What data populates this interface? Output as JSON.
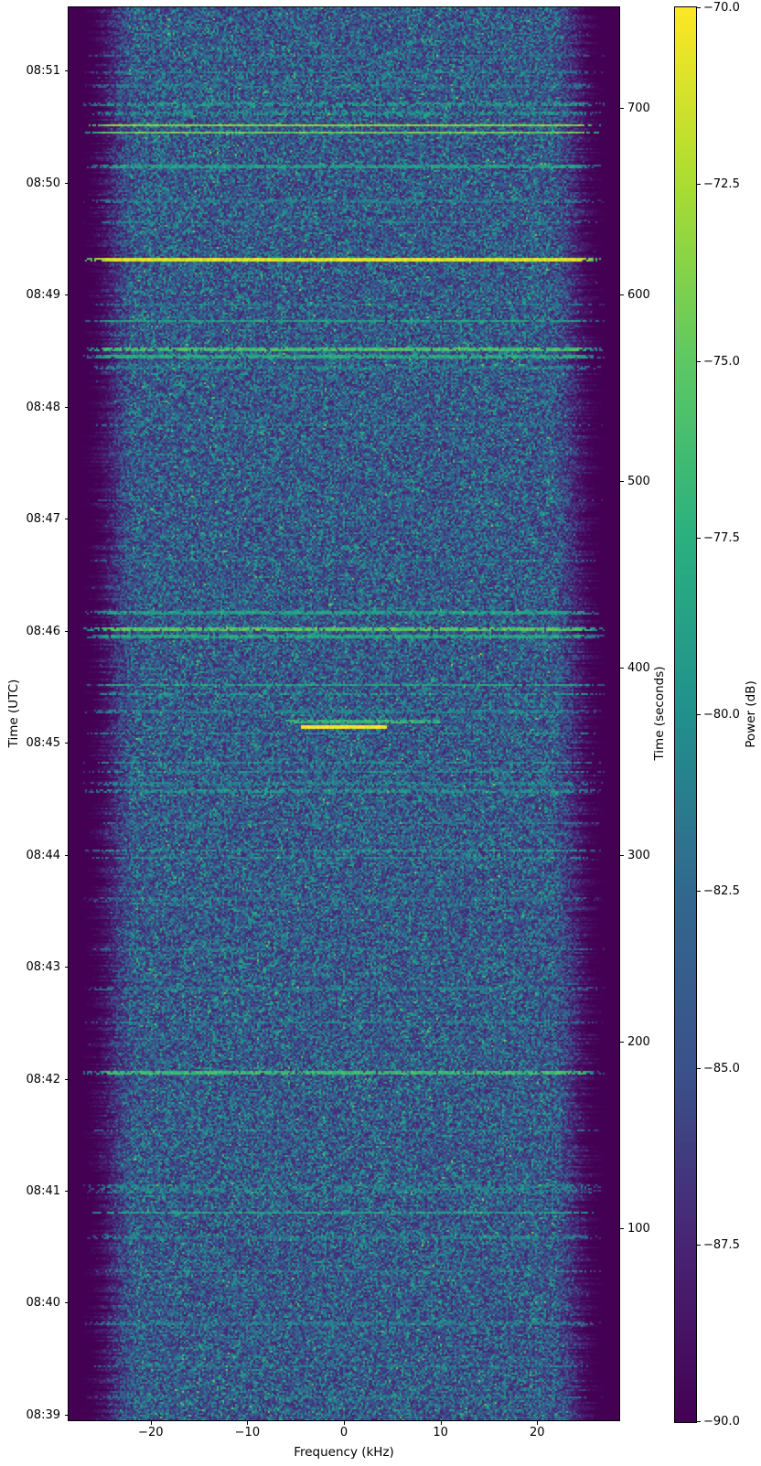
{
  "figure": {
    "title": "",
    "background": "#ffffff",
    "text_color": "#000000"
  },
  "chart_data": {
    "type": "heatmap",
    "subtype": "spectrogram-waterfall",
    "title": "",
    "xlabel": "Frequency (kHz)",
    "ylabel": "Time (UTC)",
    "ylabel_right": "Time (seconds)",
    "colorbar_label": "Power (dB)",
    "colormap": "viridis",
    "grid": false,
    "legend": "none",
    "x_range_khz": [
      -28.5,
      28.5
    ],
    "time_range_seconds": [
      -3,
      754
    ],
    "power_range_db": [
      -90,
      -70
    ],
    "x_ticks": [
      {
        "v": -20,
        "label": "−20"
      },
      {
        "v": -10,
        "label": "−10"
      },
      {
        "v": 0,
        "label": "0"
      },
      {
        "v": 10,
        "label": "10"
      },
      {
        "v": 20,
        "label": "20"
      }
    ],
    "y_ticks_utc": [
      {
        "t": 0,
        "label": "08:39"
      },
      {
        "t": 60,
        "label": "08:40"
      },
      {
        "t": 120,
        "label": "08:41"
      },
      {
        "t": 180,
        "label": "08:42"
      },
      {
        "t": 240,
        "label": "08:43"
      },
      {
        "t": 300,
        "label": "08:44"
      },
      {
        "t": 360,
        "label": "08:45"
      },
      {
        "t": 420,
        "label": "08:46"
      },
      {
        "t": 480,
        "label": "08:47"
      },
      {
        "t": 540,
        "label": "08:48"
      },
      {
        "t": 600,
        "label": "08:49"
      },
      {
        "t": 660,
        "label": "08:50"
      },
      {
        "t": 720,
        "label": "08:51"
      }
    ],
    "y_ticks_seconds": [
      {
        "t": 100,
        "label": "100"
      },
      {
        "t": 200,
        "label": "200"
      },
      {
        "t": 300,
        "label": "300"
      },
      {
        "t": 400,
        "label": "400"
      },
      {
        "t": 500,
        "label": "500"
      },
      {
        "t": 600,
        "label": "600"
      },
      {
        "t": 700,
        "label": "700"
      }
    ],
    "colorbar_ticks": [
      {
        "v": -70.0,
        "label": "−70.0"
      },
      {
        "v": -72.5,
        "label": "−72.5"
      },
      {
        "v": -75.0,
        "label": "−75.0"
      },
      {
        "v": -77.5,
        "label": "−77.5"
      },
      {
        "v": -80.0,
        "label": "−80.0"
      },
      {
        "v": -82.5,
        "label": "−82.5"
      },
      {
        "v": -85.0,
        "label": "−85.0"
      },
      {
        "v": -87.5,
        "label": "−87.5"
      },
      {
        "v": -90.0,
        "label": "−90.0"
      }
    ],
    "viridis_stops": [
      [
        0.0,
        68,
        1,
        84
      ],
      [
        0.125,
        72,
        36,
        117
      ],
      [
        0.25,
        58,
        82,
        139
      ],
      [
        0.375,
        49,
        104,
        142
      ],
      [
        0.5,
        33,
        144,
        141
      ],
      [
        0.625,
        42,
        176,
        127
      ],
      [
        0.75,
        93,
        200,
        99
      ],
      [
        0.875,
        170,
        220,
        50
      ],
      [
        1.0,
        253,
        231,
        37
      ]
    ],
    "noise_model": {
      "floor_db": -90,
      "in_band_mean_db": -84.5,
      "passband_khz": 21.3,
      "rolloff_end_khz": 24.8,
      "edge_jitter_khz": 1.2
    },
    "interference_lines": [
      {
        "t": 728,
        "db": -82.5
      },
      {
        "t": 719,
        "db": -81.5
      },
      {
        "t": 712,
        "db": -82
      },
      {
        "t": 702,
        "db": -79.5
      },
      {
        "t": 697,
        "db": -80
      },
      {
        "t": 691,
        "db": -73.5
      },
      {
        "t": 687,
        "db": -74.5
      },
      {
        "t": 669,
        "db": -79
      },
      {
        "t": 650,
        "db": -81.5
      },
      {
        "t": 639,
        "db": -81.5
      },
      {
        "t": 619,
        "db": -71
      },
      {
        "t": 595,
        "db": -82
      },
      {
        "t": 586,
        "db": -79
      },
      {
        "t": 571,
        "db": -76
      },
      {
        "t": 567,
        "db": -78
      },
      {
        "t": 561,
        "db": -81
      },
      {
        "t": 530,
        "db": -81.5
      },
      {
        "t": 490,
        "db": -83
      },
      {
        "t": 458,
        "db": -82
      },
      {
        "t": 430,
        "db": -79
      },
      {
        "t": 421,
        "db": -75.5
      },
      {
        "t": 417,
        "db": -78.5
      },
      {
        "t": 391,
        "db": -78.5
      },
      {
        "t": 386,
        "db": -79.5
      },
      {
        "t": 377,
        "db": -81
      },
      {
        "t": 371,
        "db": -77,
        "f0": -6,
        "f1": 10
      },
      {
        "t": 368,
        "db": -70,
        "f0": -4.5,
        "f1": 4.5,
        "hw": 1.0
      },
      {
        "t": 365,
        "db": -80
      },
      {
        "t": 349,
        "db": -80
      },
      {
        "t": 344,
        "db": -80.5
      },
      {
        "t": 338,
        "db": -81
      },
      {
        "t": 334,
        "db": -80
      },
      {
        "t": 317,
        "db": -82
      },
      {
        "t": 302,
        "db": -79.5
      },
      {
        "t": 298,
        "db": -80.5
      },
      {
        "t": 276,
        "db": -82.5
      },
      {
        "t": 249,
        "db": -81.5
      },
      {
        "t": 228,
        "db": -82
      },
      {
        "t": 210,
        "db": -81.5
      },
      {
        "t": 183,
        "db": -76.5
      },
      {
        "t": 152,
        "db": -81.5
      },
      {
        "t": 121,
        "db": -80.5,
        "hw": 2.5,
        "prob": 0.45
      },
      {
        "t": 108,
        "db": -78.5
      },
      {
        "t": 95,
        "db": -81.5
      },
      {
        "t": 77,
        "db": -81.5
      },
      {
        "t": 49,
        "db": -81.5
      },
      {
        "t": 26,
        "db": -81.5
      },
      {
        "t": 9,
        "db": -82
      }
    ]
  }
}
